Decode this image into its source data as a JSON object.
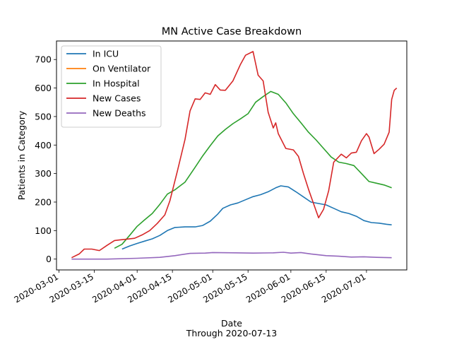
{
  "chart_data": {
    "type": "line",
    "title": "MN Active Case Breakdown",
    "xlabel": "Date",
    "xlabel_sub": "Through 2020-07-13",
    "ylabel": "Patients in Category",
    "x_ticks": [
      "2020-03-01",
      "2020-03-15",
      "2020-04-01",
      "2020-04-15",
      "2020-05-01",
      "2020-05-15",
      "2020-06-01",
      "2020-06-15",
      "2020-07-01"
    ],
    "y_ticks": [
      0,
      100,
      200,
      300,
      400,
      500,
      600,
      700
    ],
    "xlim": [
      "2020-02-29",
      "2020-07-17"
    ],
    "ylim": [
      -38,
      765
    ],
    "grid": false,
    "legend_position": "top-left",
    "series": [
      {
        "name": "In ICU",
        "color": "#1f77b4",
        "points": [
          [
            "2020-03-26",
            35
          ],
          [
            "2020-03-29",
            46
          ],
          [
            "2020-04-01",
            55
          ],
          [
            "2020-04-04",
            63
          ],
          [
            "2020-04-07",
            71
          ],
          [
            "2020-04-10",
            83
          ],
          [
            "2020-04-13",
            100
          ],
          [
            "2020-04-16",
            111
          ],
          [
            "2020-04-20",
            113
          ],
          [
            "2020-04-24",
            113
          ],
          [
            "2020-04-27",
            118
          ],
          [
            "2020-04-30",
            133
          ],
          [
            "2020-05-03",
            158
          ],
          [
            "2020-05-05",
            178
          ],
          [
            "2020-05-08",
            190
          ],
          [
            "2020-05-11",
            197
          ],
          [
            "2020-05-14",
            208
          ],
          [
            "2020-05-17",
            219
          ],
          [
            "2020-05-20",
            226
          ],
          [
            "2020-05-23",
            236
          ],
          [
            "2020-05-26",
            250
          ],
          [
            "2020-05-28",
            257
          ],
          [
            "2020-05-31",
            253
          ],
          [
            "2020-06-03",
            236
          ],
          [
            "2020-06-06",
            218
          ],
          [
            "2020-06-09",
            200
          ],
          [
            "2020-06-12",
            195
          ],
          [
            "2020-06-15",
            190
          ],
          [
            "2020-06-18",
            178
          ],
          [
            "2020-06-21",
            166
          ],
          [
            "2020-06-24",
            160
          ],
          [
            "2020-06-27",
            150
          ],
          [
            "2020-06-30",
            135
          ],
          [
            "2020-07-03",
            128
          ],
          [
            "2020-07-06",
            126
          ],
          [
            "2020-07-09",
            122
          ],
          [
            "2020-07-11",
            120
          ]
        ]
      },
      {
        "name": "On Ventilator",
        "color": "#ff7f0e",
        "points": []
      },
      {
        "name": "In Hospital",
        "color": "#2ca02c",
        "points": [
          [
            "2020-03-23",
            38
          ],
          [
            "2020-03-26",
            52
          ],
          [
            "2020-03-29",
            83
          ],
          [
            "2020-04-01",
            115
          ],
          [
            "2020-04-04",
            138
          ],
          [
            "2020-04-07",
            160
          ],
          [
            "2020-04-10",
            192
          ],
          [
            "2020-04-13",
            228
          ],
          [
            "2020-04-16",
            243
          ],
          [
            "2020-04-20",
            270
          ],
          [
            "2020-04-24",
            322
          ],
          [
            "2020-04-27",
            362
          ],
          [
            "2020-04-30",
            398
          ],
          [
            "2020-05-03",
            432
          ],
          [
            "2020-05-06",
            455
          ],
          [
            "2020-05-09",
            475
          ],
          [
            "2020-05-12",
            492
          ],
          [
            "2020-05-15",
            510
          ],
          [
            "2020-05-18",
            550
          ],
          [
            "2020-05-21",
            570
          ],
          [
            "2020-05-24",
            588
          ],
          [
            "2020-05-27",
            578
          ],
          [
            "2020-05-30",
            548
          ],
          [
            "2020-06-02",
            510
          ],
          [
            "2020-06-05",
            478
          ],
          [
            "2020-06-08",
            445
          ],
          [
            "2020-06-11",
            418
          ],
          [
            "2020-06-14",
            388
          ],
          [
            "2020-06-17",
            358
          ],
          [
            "2020-06-20",
            340
          ],
          [
            "2020-06-23",
            335
          ],
          [
            "2020-06-26",
            328
          ],
          [
            "2020-06-29",
            300
          ],
          [
            "2020-07-02",
            272
          ],
          [
            "2020-07-05",
            266
          ],
          [
            "2020-07-08",
            260
          ],
          [
            "2020-07-11",
            250
          ]
        ]
      },
      {
        "name": "New Cases",
        "color": "#d62728",
        "points": [
          [
            "2020-03-06",
            5
          ],
          [
            "2020-03-09",
            18
          ],
          [
            "2020-03-11",
            35
          ],
          [
            "2020-03-14",
            35
          ],
          [
            "2020-03-17",
            30
          ],
          [
            "2020-03-20",
            48
          ],
          [
            "2020-03-23",
            65
          ],
          [
            "2020-03-25",
            67
          ],
          [
            "2020-03-28",
            70
          ],
          [
            "2020-03-31",
            73
          ],
          [
            "2020-04-03",
            85
          ],
          [
            "2020-04-06",
            100
          ],
          [
            "2020-04-09",
            125
          ],
          [
            "2020-04-12",
            155
          ],
          [
            "2020-04-14",
            205
          ],
          [
            "2020-04-17",
            310
          ],
          [
            "2020-04-20",
            420
          ],
          [
            "2020-04-22",
            520
          ],
          [
            "2020-04-24",
            562
          ],
          [
            "2020-04-26",
            560
          ],
          [
            "2020-04-28",
            583
          ],
          [
            "2020-04-30",
            578
          ],
          [
            "2020-05-02",
            612
          ],
          [
            "2020-05-04",
            593
          ],
          [
            "2020-05-06",
            592
          ],
          [
            "2020-05-09",
            625
          ],
          [
            "2020-05-12",
            683
          ],
          [
            "2020-05-14",
            715
          ],
          [
            "2020-05-17",
            728
          ],
          [
            "2020-05-19",
            645
          ],
          [
            "2020-05-21",
            625
          ],
          [
            "2020-05-23",
            515
          ],
          [
            "2020-05-25",
            460
          ],
          [
            "2020-05-26",
            478
          ],
          [
            "2020-05-27",
            440
          ],
          [
            "2020-05-30",
            388
          ],
          [
            "2020-06-02",
            383
          ],
          [
            "2020-06-04",
            360
          ],
          [
            "2020-06-06",
            300
          ],
          [
            "2020-06-08",
            245
          ],
          [
            "2020-06-11",
            170
          ],
          [
            "2020-06-12",
            145
          ],
          [
            "2020-06-14",
            175
          ],
          [
            "2020-06-16",
            240
          ],
          [
            "2020-06-18",
            340
          ],
          [
            "2020-06-21",
            368
          ],
          [
            "2020-06-23",
            355
          ],
          [
            "2020-06-25",
            372
          ],
          [
            "2020-06-27",
            375
          ],
          [
            "2020-06-29",
            415
          ],
          [
            "2020-07-01",
            440
          ],
          [
            "2020-07-02",
            428
          ],
          [
            "2020-07-04",
            370
          ],
          [
            "2020-07-06",
            385
          ],
          [
            "2020-07-08",
            403
          ],
          [
            "2020-07-10",
            445
          ],
          [
            "2020-07-11",
            560
          ],
          [
            "2020-07-12",
            592
          ],
          [
            "2020-07-13",
            600
          ]
        ]
      },
      {
        "name": "New Deaths",
        "color": "#9467bd",
        "points": [
          [
            "2020-03-06",
            0
          ],
          [
            "2020-03-20",
            0
          ],
          [
            "2020-04-01",
            3
          ],
          [
            "2020-04-10",
            6
          ],
          [
            "2020-04-16",
            12
          ],
          [
            "2020-04-22",
            20
          ],
          [
            "2020-04-28",
            21
          ],
          [
            "2020-05-01",
            23
          ],
          [
            "2020-05-10",
            22
          ],
          [
            "2020-05-17",
            21
          ],
          [
            "2020-05-25",
            22
          ],
          [
            "2020-05-29",
            24
          ],
          [
            "2020-06-01",
            21
          ],
          [
            "2020-06-05",
            23
          ],
          [
            "2020-06-09",
            18
          ],
          [
            "2020-06-15",
            12
          ],
          [
            "2020-06-20",
            10
          ],
          [
            "2020-06-25",
            7
          ],
          [
            "2020-06-30",
            8
          ],
          [
            "2020-07-05",
            6
          ],
          [
            "2020-07-11",
            5
          ]
        ]
      }
    ]
  }
}
